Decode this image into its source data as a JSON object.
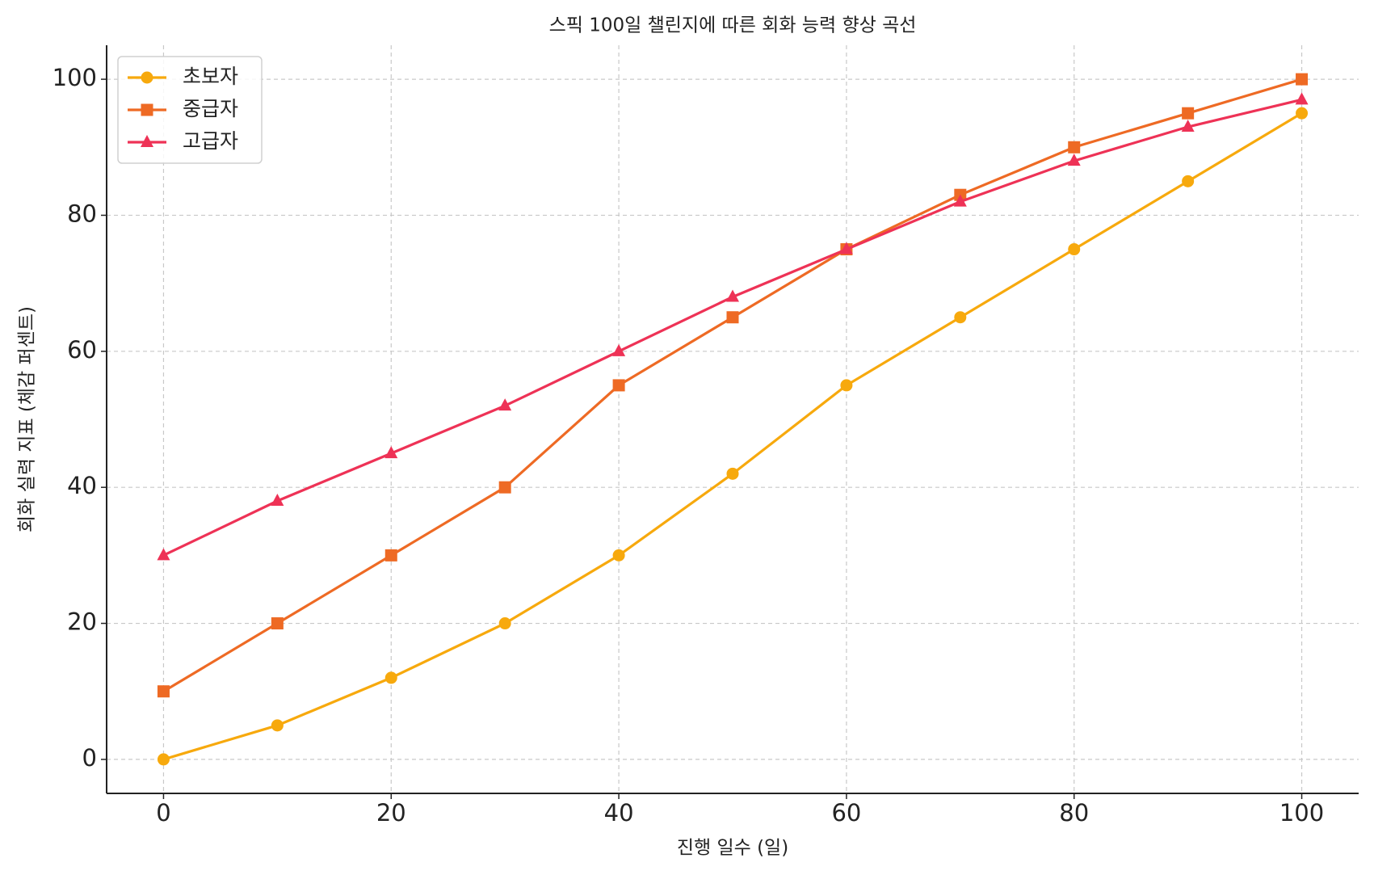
{
  "chart_data": {
    "type": "line",
    "title": "스픽 100일 챌린지에 따른 회화 능력 향상 곡선",
    "x_label": "진행 일수 (일)",
    "y_label": "회화 실력 지표 (체감 퍼센트)",
    "x": [
      0,
      10,
      20,
      30,
      40,
      50,
      60,
      70,
      80,
      90,
      100
    ],
    "series": [
      {
        "name": "초보자",
        "color": "#f7a90d",
        "marker": "circle",
        "values": [
          0,
          5,
          12,
          20,
          30,
          42,
          55,
          65,
          75,
          85,
          95
        ]
      },
      {
        "name": "중급자",
        "color": "#ee6a24",
        "marker": "square",
        "values": [
          10,
          20,
          30,
          40,
          55,
          65,
          75,
          83,
          90,
          95,
          100
        ]
      },
      {
        "name": "고급자",
        "color": "#ee3256",
        "marker": "triangle",
        "values": [
          30,
          38,
          45,
          52,
          60,
          68,
          75,
          82,
          88,
          93,
          97
        ]
      }
    ],
    "xlim": [
      -5,
      105
    ],
    "ylim": [
      -5,
      105
    ],
    "xticks": [
      0,
      20,
      40,
      60,
      80,
      100
    ],
    "yticks": [
      0,
      20,
      40,
      60,
      80,
      100
    ],
    "grid": true,
    "legend": "upper left"
  }
}
